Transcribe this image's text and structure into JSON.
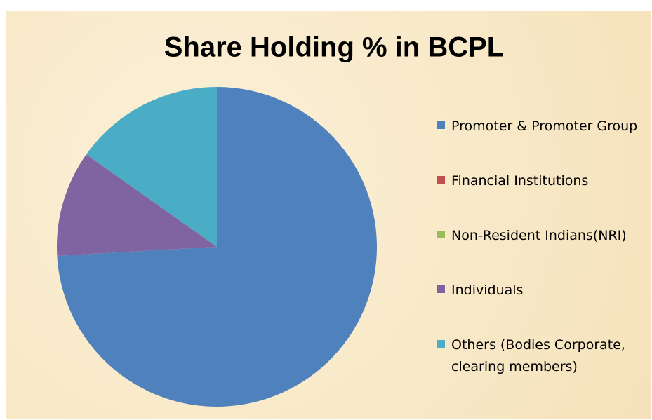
{
  "chart_data": {
    "type": "pie",
    "title": "Share Holding % in BCPL",
    "categories": [
      "Promoter & Promoter Group",
      "Financial Institutions",
      "Non-Resident Indians(NRI)",
      "Individuals",
      "Others (Bodies Corporate, clearing members)"
    ],
    "values": [
      74.1,
      0,
      0,
      10.7,
      15.2
    ],
    "colors": [
      "#4f81bd",
      "#c0504d",
      "#9bbb59",
      "#8064a2",
      "#4bacc6"
    ],
    "legend": "right"
  }
}
